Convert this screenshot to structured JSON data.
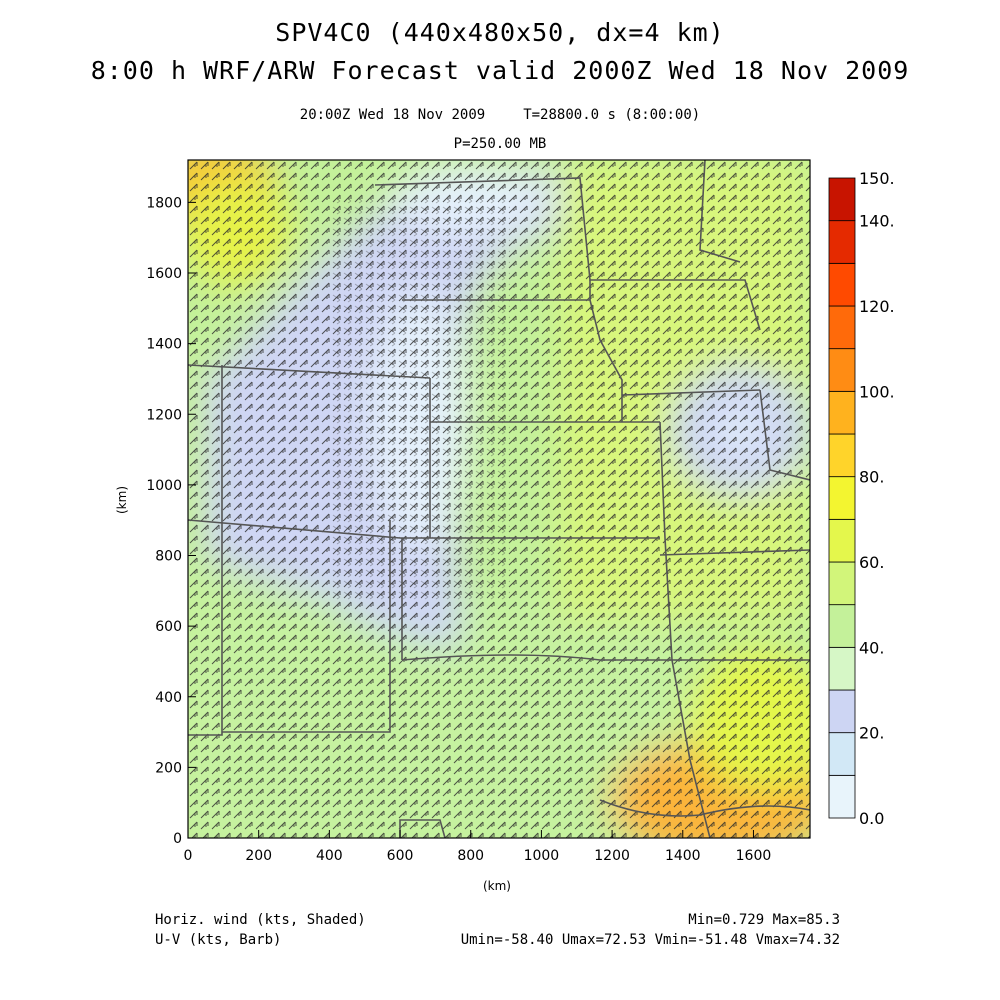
{
  "header": {
    "title_line1": "SPV4C0 (440x480x50, dx=4 km)",
    "title_line2": "8:00 h WRF/ARW Forecast valid 2000Z Wed 18 Nov 2009",
    "valid_time": "20:00Z Wed 18 Nov 2009",
    "model_time": "T=28800.0 s (8:00:00)",
    "level": "P=250.00 MB"
  },
  "axes": {
    "x_label": "(km)",
    "y_label": "(km)",
    "x_ticks": [
      "0",
      "200",
      "400",
      "600",
      "800",
      "1000",
      "1200",
      "1400",
      "1600"
    ],
    "y_ticks": [
      "0",
      "200",
      "400",
      "600",
      "800",
      "1000",
      "1200",
      "1400",
      "1600",
      "1800"
    ],
    "x_range": [
      0,
      1760
    ],
    "y_range": [
      0,
      1920
    ]
  },
  "colorbar": {
    "labels": [
      "150.",
      "140.",
      "120.",
      "100.",
      "80.",
      "60.",
      "40.",
      "20.",
      "0.0"
    ],
    "levels": [
      0,
      10,
      20,
      30,
      40,
      50,
      60,
      70,
      80,
      90,
      100,
      110,
      120,
      130,
      140,
      150
    ],
    "colors": [
      "#e8f4fb",
      "#d2e8f6",
      "#cdd5f3",
      "#d6f7c6",
      "#c4f19a",
      "#d2f57a",
      "#e4f74c",
      "#f3f530",
      "#ffd42a",
      "#ffb21e",
      "#ff8c14",
      "#ff6a0a",
      "#ff4a00",
      "#e52a00",
      "#c81400",
      "#a80000"
    ]
  },
  "footer": {
    "left_line1": "Horiz. wind (kts, Shaded)",
    "left_line2": "U-V (kts, Barb)",
    "right_line1": "Min=0.729 Max=85.3",
    "right_line2": "Umin=-58.40 Umax=72.53 Vmin=-51.48 Vmax=74.32"
  },
  "map": {
    "field": "250 mb horizontal wind speed with wind barbs",
    "regions": [
      {
        "name": "upper-left high wind",
        "level": "orange",
        "color": "#f8c230"
      },
      {
        "name": "light wind band (central)",
        "level": "light blue",
        "color": "#cfd6f4"
      },
      {
        "name": "upper-low circulation (east)",
        "level": "light blue",
        "color": "#cdd5f3"
      },
      {
        "name": "southeast jet",
        "level": "orange",
        "color": "#fbb43a"
      }
    ]
  }
}
